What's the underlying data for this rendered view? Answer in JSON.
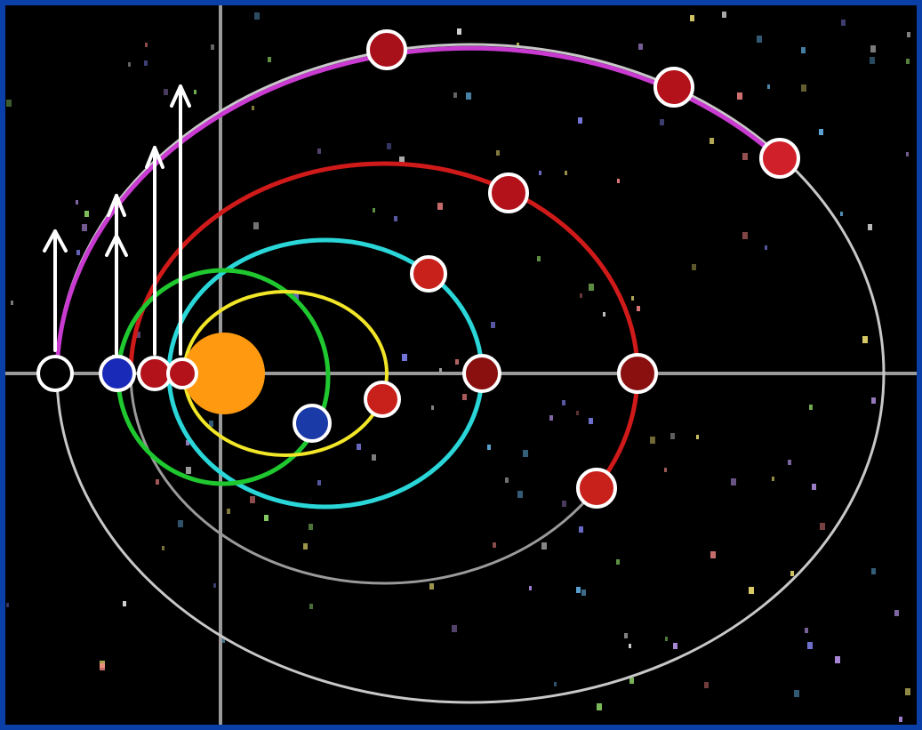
{
  "diagram": {
    "subject": "orbits",
    "colors": {
      "frame": "#0b3fa8",
      "space": "#000000",
      "axes": "#9a9a9a",
      "sun": "#ff9a10",
      "launch_arrow": "#ffffff",
      "orbit_yellow": "#f2e628",
      "orbit_green": "#20c830",
      "orbit_cyan": "#2ad6d8",
      "orbit_red": "#d01a1a",
      "orbit_magenta": "#c83ad0",
      "orbit_gray": "#c8c8c8",
      "body_red": "#b3121a",
      "body_blue": "#1a2ab8",
      "body_white_ring": "#ffffff"
    },
    "orbits": [
      {
        "id": "yellow",
        "color_key": "orbit_yellow"
      },
      {
        "id": "green",
        "color_key": "orbit_green"
      },
      {
        "id": "cyan",
        "color_key": "orbit_cyan"
      },
      {
        "id": "red",
        "color_key": "orbit_red"
      },
      {
        "id": "magenta",
        "color_key": "orbit_magenta"
      },
      {
        "id": "gray",
        "color_key": "orbit_gray"
      }
    ],
    "launch_arrows": 5,
    "bodies_count": 14
  }
}
